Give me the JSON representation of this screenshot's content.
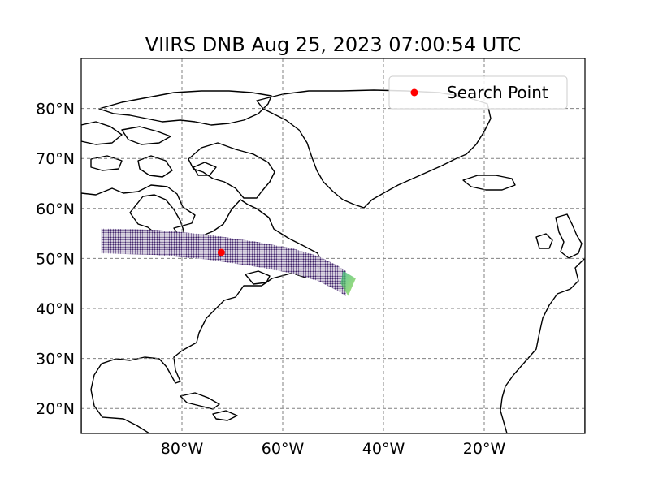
{
  "chart_data": {
    "type": "map",
    "title": "VIIRS DNB Aug 25, 2023 07:00:54 UTC",
    "projection": "PlateCarree",
    "xlim": [
      -100,
      0
    ],
    "ylim": [
      15,
      90
    ],
    "grid": true,
    "x_ticks": [
      {
        "value": -80,
        "label": "80°W"
      },
      {
        "value": -60,
        "label": "60°W"
      },
      {
        "value": -40,
        "label": "40°W"
      },
      {
        "value": -20,
        "label": "20°W"
      }
    ],
    "y_ticks": [
      {
        "value": 20,
        "label": "20°N"
      },
      {
        "value": 30,
        "label": "30°N"
      },
      {
        "value": 40,
        "label": "40°N"
      },
      {
        "value": 50,
        "label": "50°N"
      },
      {
        "value": 60,
        "label": "60°N"
      },
      {
        "value": 70,
        "label": "70°N"
      },
      {
        "value": 80,
        "label": "80°N"
      }
    ],
    "legend": {
      "position": "top-right",
      "entries": [
        {
          "label": "Search Point",
          "color": "#ff0000",
          "marker": "circle"
        }
      ]
    },
    "search_point": {
      "lon": -72.2,
      "lat": 51.2,
      "color": "#ff0000"
    },
    "swath": {
      "colormap": "viridis",
      "dominant_color": "#3b1c66",
      "edge_color": "#2fb47c",
      "edge_highlight": "#8fd744",
      "centerline": [
        [
          -96,
          53.5
        ],
        [
          -85,
          53.2
        ],
        [
          -75,
          52.3
        ],
        [
          -65,
          50.8
        ],
        [
          -58,
          49.5
        ],
        [
          -53,
          48
        ],
        [
          -49,
          46
        ],
        [
          -47.5,
          45
        ]
      ],
      "half_width_deg": 2.5
    },
    "coastline_color": "#000000",
    "gridline_color": "#808080"
  }
}
